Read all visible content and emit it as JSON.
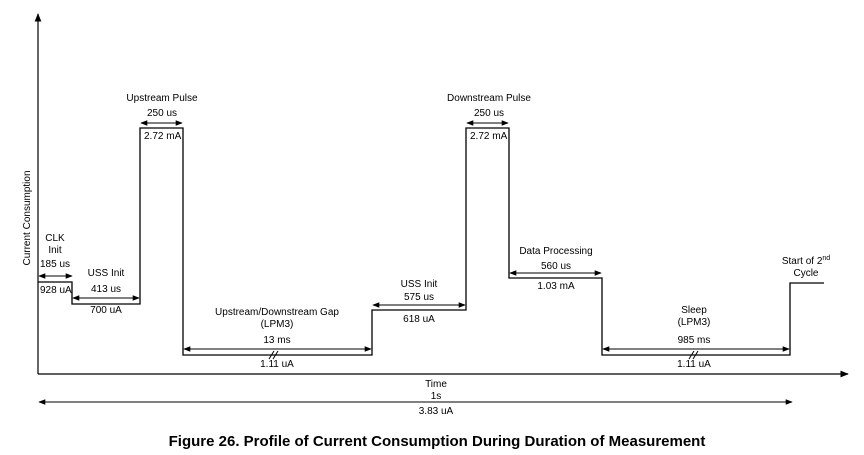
{
  "figure": {
    "caption": "Figure 26. Profile of Current Consumption During Duration of Measurement"
  },
  "axes": {
    "y_label": "Current Consumption",
    "x_label": "Time"
  },
  "phases": {
    "clk_init": {
      "name_line1": "CLK",
      "name_line2": "Init",
      "duration": "185 us",
      "current": "928 uA"
    },
    "uss_init_1": {
      "name": "USS Init",
      "duration": "413 us",
      "current": "700 uA"
    },
    "upstream_pulse": {
      "name": "Upstream Pulse",
      "duration": "250 us",
      "current": "2.72 mA"
    },
    "gap": {
      "name_line1": "Upstream/Downstream Gap",
      "name_line2": "(LPM3)",
      "duration": "13 ms",
      "current": "1.11 uA"
    },
    "uss_init_2": {
      "name": "USS Init",
      "duration": "575 us",
      "current": "618 uA"
    },
    "downstream_pulse": {
      "name": "Downstream Pulse",
      "duration": "250 us",
      "current": "2.72 mA"
    },
    "data_processing": {
      "name": "Data Processing",
      "duration": "560 us",
      "current": "1.03 mA"
    },
    "sleep": {
      "name_line1": "Sleep",
      "name_line2": "(LPM3)",
      "duration": "985 ms",
      "current": "1.11 uA"
    },
    "next_cycle": {
      "line1": "Start of 2",
      "superscript": "nd",
      "line2": "Cycle"
    }
  },
  "total": {
    "duration": "1s",
    "current": "3.83 uA"
  }
}
